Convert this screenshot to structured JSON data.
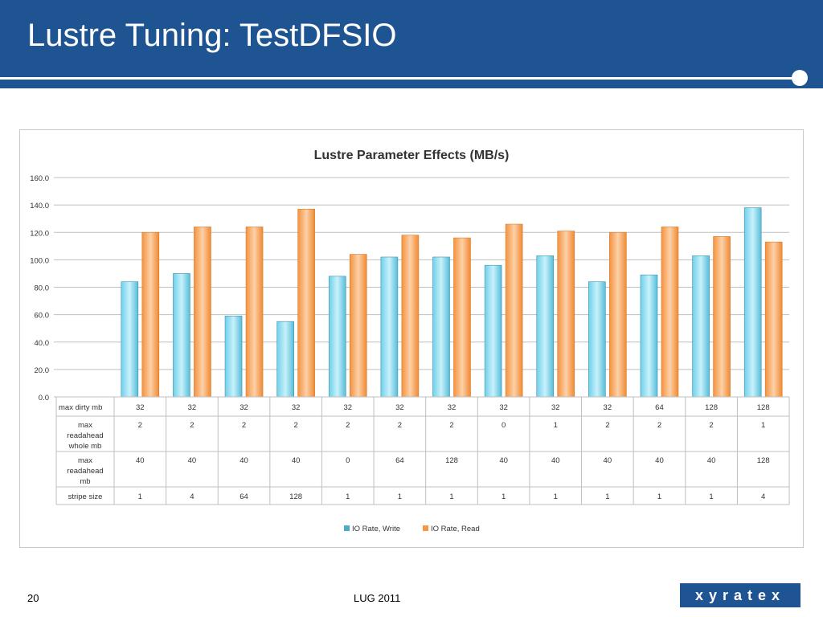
{
  "slide": {
    "title": "Lustre Tuning: TestDFSIO",
    "page_number": "20",
    "footer_text": "LUG 2011",
    "logo_text": "xyratex",
    "header_color": "#1f5493"
  },
  "chart_data": {
    "type": "bar",
    "title": "Lustre Parameter Effects (MB/s)",
    "ylim": [
      0,
      160
    ],
    "yticks": [
      "0.0",
      "20.0",
      "40.0",
      "60.0",
      "80.0",
      "100.0",
      "120.0",
      "140.0",
      "160.0"
    ],
    "grid": true,
    "legend_position": "bottom",
    "series": [
      {
        "name": "IO Rate, Write",
        "color": "#4bacc6",
        "values": [
          84,
          90,
          59,
          55,
          88,
          102,
          102,
          96,
          103,
          84,
          89,
          103,
          138
        ]
      },
      {
        "name": "IO Rate, Read",
        "color": "#f79646",
        "values": [
          120,
          124,
          124,
          137,
          104,
          118,
          116,
          126,
          121,
          120,
          124,
          117,
          113
        ]
      }
    ],
    "table_rows": [
      {
        "label": "max dirty mb",
        "values": [
          "32",
          "32",
          "32",
          "32",
          "32",
          "32",
          "32",
          "32",
          "32",
          "32",
          "64",
          "128",
          "128"
        ]
      },
      {
        "label": "max readahead whole mb",
        "values": [
          "2",
          "2",
          "2",
          "2",
          "2",
          "2",
          "2",
          "0",
          "1",
          "2",
          "2",
          "2",
          "1"
        ]
      },
      {
        "label": "max readahead mb",
        "values": [
          "40",
          "40",
          "40",
          "40",
          "0",
          "64",
          "128",
          "40",
          "40",
          "40",
          "40",
          "40",
          "128"
        ]
      },
      {
        "label": "stripe size",
        "values": [
          "1",
          "4",
          "64",
          "128",
          "1",
          "1",
          "1",
          "1",
          "1",
          "1",
          "1",
          "1",
          "4"
        ]
      }
    ]
  }
}
